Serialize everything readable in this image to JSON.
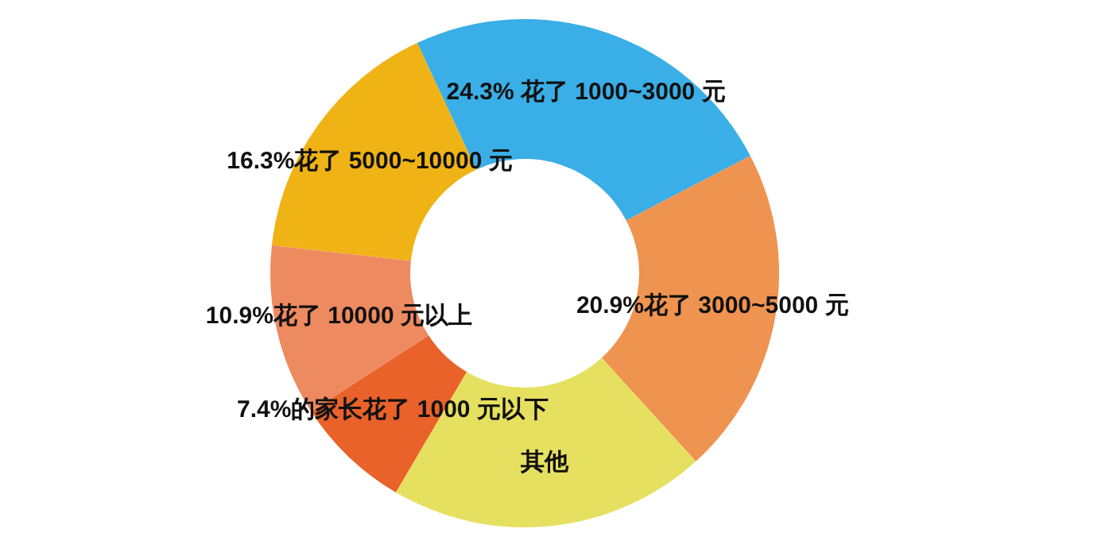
{
  "chart_data": {
    "type": "donut",
    "categories": [
      "24.3%  花了 1000~3000 元",
      "20.9%花了 3000~5000 元",
      "其他",
      "7.4%的家长花了 1000 元以下",
      "10.9%花了 10000 元以上",
      "16.3%花了 5000~10000 元"
    ],
    "values": [
      24.3,
      20.9,
      20.2,
      7.4,
      10.9,
      16.3
    ],
    "colors": [
      "#3aaee6",
      "#ef9350",
      "#e6e060",
      "#e8622a",
      "#ee8a60",
      "#f0b315"
    ]
  }
}
